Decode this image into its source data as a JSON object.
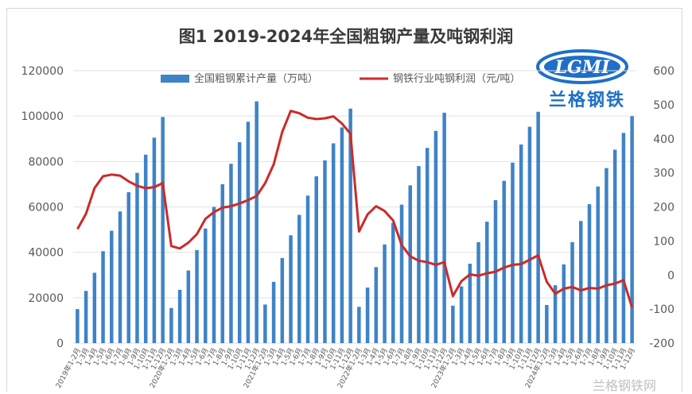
{
  "title": "图1 2019-2024年全国粗钢产量及吨钢利润",
  "logo": {
    "mark": "LGMI",
    "text": "兰格钢铁"
  },
  "watermark": "兰格钢铁网",
  "colors": {
    "bar": "#3e83c6",
    "line": "#cc2a2a",
    "grid": "#e2e2e2",
    "axis_text": "#595959"
  },
  "chart_data": {
    "type": "bar",
    "title": "图1 2019-2024年全国粗钢产量及吨钢利润",
    "categories": [
      "2019年1-2月",
      "1-3月",
      "1-4月",
      "1-5月",
      "1-6月",
      "1-7月",
      "1-8月",
      "1-9月",
      "1-10月",
      "1-11月",
      "1-12月",
      "2020年1-2月",
      "1-3月",
      "1-4月",
      "1-5月",
      "1-6月",
      "1-7月",
      "1-8月",
      "1-9月",
      "1-10月",
      "1-11月",
      "1-12月",
      "2021年1-2月",
      "1-3月",
      "1-4月",
      "1-5月",
      "1-6月",
      "1-7月",
      "1-8月",
      "1-9月",
      "1-10月",
      "1-11月",
      "1-12月",
      "2022年1-2月",
      "1-3月",
      "1-4月",
      "1-5月",
      "1-6月",
      "1-7月",
      "1-8月",
      "1-9月",
      "1-10月",
      "1-11月",
      "1-12月",
      "2023年1-2月",
      "1-3月",
      "1-4月",
      "1-5月",
      "1-6月",
      "1-7月",
      "1-8月",
      "1-9月",
      "1-10月",
      "1-11月",
      "1-12月",
      "2024年1-2月",
      "1-3月",
      "1-4月",
      "1-5月",
      "1-6月",
      "1-7月",
      "1-8月",
      "1-9月",
      "1-10月",
      "1-11月",
      "1-12月"
    ],
    "series": [
      {
        "name": "全国粗钢累计产量（万吨）",
        "type": "bar",
        "axis": "left",
        "values": [
          15000,
          23000,
          31000,
          40500,
          49500,
          58000,
          66500,
          75000,
          83000,
          90500,
          99600,
          15500,
          23500,
          32000,
          41000,
          50500,
          60000,
          70000,
          79000,
          88500,
          97500,
          106500,
          17000,
          27000,
          37500,
          47500,
          56500,
          65000,
          73500,
          80500,
          88000,
          95000,
          103300,
          16000,
          24500,
          33500,
          43500,
          53000,
          61000,
          69500,
          78000,
          86000,
          93500,
          101500,
          16500,
          25000,
          35000,
          44500,
          53500,
          63000,
          71500,
          79500,
          87500,
          95300,
          101900,
          16800,
          25500,
          34700,
          44500,
          53800,
          61200,
          69000,
          77100,
          85200,
          92600,
          100000
        ]
      },
      {
        "name": "钢铁行业吨钢利润（元/吨）",
        "type": "line",
        "axis": "right",
        "values": [
          135,
          180,
          255,
          290,
          295,
          292,
          275,
          262,
          255,
          258,
          270,
          85,
          78,
          95,
          120,
          165,
          185,
          198,
          202,
          210,
          220,
          232,
          270,
          325,
          420,
          482,
          475,
          462,
          458,
          460,
          466,
          445,
          415,
          128,
          178,
          202,
          188,
          160,
          88,
          55,
          42,
          38,
          30,
          38,
          -62,
          -18,
          2,
          -2,
          5,
          10,
          22,
          30,
          32,
          45,
          58,
          -20,
          -55,
          -40,
          -35,
          -45,
          -38,
          -40,
          -30,
          -25,
          -15,
          -95
        ]
      }
    ],
    "y_left": {
      "min": 0,
      "max": 120000,
      "ticks": [
        0,
        20000,
        40000,
        60000,
        80000,
        100000,
        120000
      ]
    },
    "y_right": {
      "min": -200,
      "max": 600,
      "ticks": [
        -200,
        -100,
        0,
        100,
        200,
        300,
        400,
        500,
        600
      ]
    },
    "legend": {
      "placement": "top"
    },
    "grid": true
  }
}
